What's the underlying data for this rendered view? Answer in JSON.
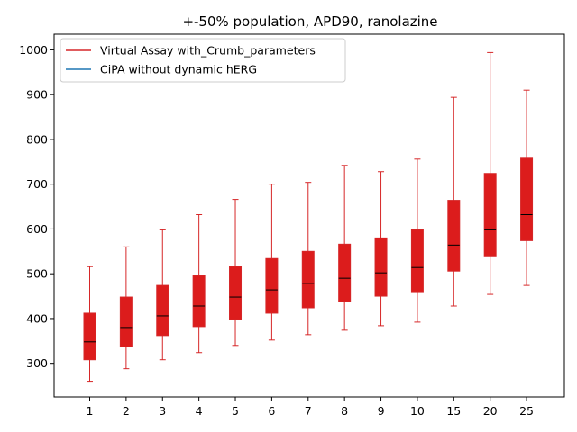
{
  "chart_data": {
    "type": "box",
    "title": "+-50% population, APD90, ranolazine",
    "xlabel": "",
    "ylabel": "",
    "ylim": [
      225,
      1035
    ],
    "yticks": [
      300,
      400,
      500,
      600,
      700,
      800,
      900,
      1000
    ],
    "grid": false,
    "legend_position": "upper-left",
    "categories": [
      "1",
      "2",
      "3",
      "4",
      "5",
      "6",
      "7",
      "8",
      "9",
      "10",
      "15",
      "20",
      "25"
    ],
    "series": [
      {
        "name": "Virtual Assay with_Crumb_parameters",
        "color": "#d62728",
        "boxes": [
          {
            "min": 260,
            "q1": 308,
            "median": 348,
            "q3": 412,
            "max": 516
          },
          {
            "min": 288,
            "q1": 337,
            "median": 380,
            "q3": 448,
            "max": 560
          },
          {
            "min": 308,
            "q1": 362,
            "median": 406,
            "q3": 474,
            "max": 598
          },
          {
            "min": 324,
            "q1": 382,
            "median": 428,
            "q3": 496,
            "max": 632
          },
          {
            "min": 340,
            "q1": 398,
            "median": 448,
            "q3": 516,
            "max": 666
          },
          {
            "min": 352,
            "q1": 412,
            "median": 464,
            "q3": 534,
            "max": 700
          },
          {
            "min": 364,
            "q1": 424,
            "median": 478,
            "q3": 550,
            "max": 704
          },
          {
            "min": 374,
            "q1": 438,
            "median": 490,
            "q3": 566,
            "max": 742
          },
          {
            "min": 384,
            "q1": 450,
            "median": 502,
            "q3": 580,
            "max": 728
          },
          {
            "min": 392,
            "q1": 460,
            "median": 514,
            "q3": 598,
            "max": 756
          },
          {
            "min": 428,
            "q1": 506,
            "median": 564,
            "q3": 664,
            "max": 894
          },
          {
            "min": 454,
            "q1": 540,
            "median": 598,
            "q3": 724,
            "max": 994
          },
          {
            "min": 474,
            "q1": 574,
            "median": 632,
            "q3": 758,
            "max": 910
          }
        ]
      },
      {
        "name": "CiPA without dynamic hERG",
        "color": "#1f77b4",
        "boxes": []
      }
    ]
  }
}
